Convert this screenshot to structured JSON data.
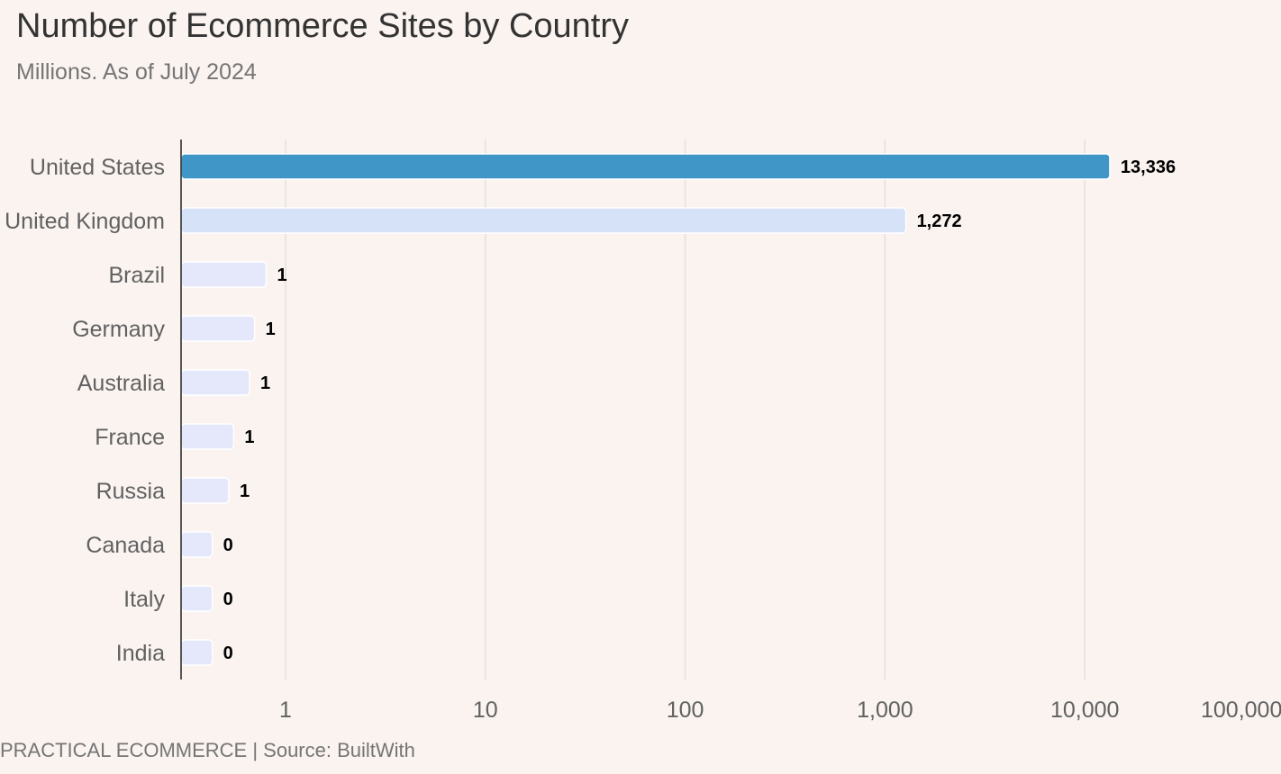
{
  "chart_data": {
    "type": "bar",
    "orientation": "horizontal",
    "title": "Number of Ecommerce Sites by Country",
    "subtitle": "Millions. As of July 2024",
    "categories": [
      "United States",
      "United Kingdom",
      "Brazil",
      "Germany",
      "Australia",
      "France",
      "Russia",
      "Canada",
      "Italy",
      "India"
    ],
    "values": [
      13336,
      1272,
      0.8,
      0.7,
      0.66,
      0.55,
      0.52,
      0.43,
      0.43,
      0.43
    ],
    "value_labels": [
      "13,336",
      "1,272",
      "1",
      "1",
      "1",
      "1",
      "1",
      "0",
      "0",
      "0"
    ],
    "x_scale": "log",
    "xlim": [
      0.3,
      100000
    ],
    "x_ticks": [
      1,
      10,
      100,
      1000,
      10000,
      100000
    ],
    "x_tick_labels": [
      "1",
      "10",
      "100",
      "1,000",
      "10,000",
      "100,000"
    ],
    "grid": "vertical",
    "colors": {
      "highlight": "#4196c8",
      "secondary": "#d6e2f8",
      "default": "#e5e8fb",
      "grid": "#e4e1de",
      "axis": "#222222"
    },
    "bar_color_roles": [
      "highlight",
      "secondary",
      "default",
      "default",
      "default",
      "default",
      "default",
      "default",
      "default",
      "default"
    ]
  },
  "footer": {
    "text": "PRACTICAL ECOMMERCE | Source:  BuiltWith"
  }
}
